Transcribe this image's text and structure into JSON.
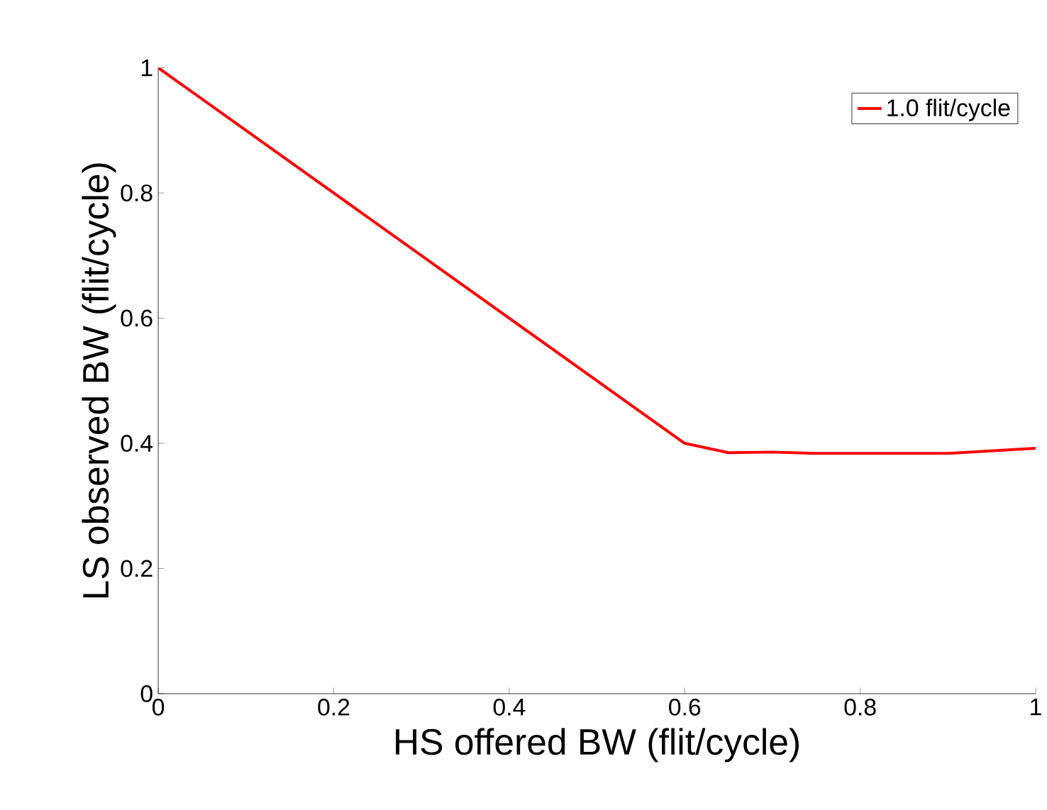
{
  "chart_data": {
    "type": "line",
    "xlabel": "HS offered BW (flit/cycle)",
    "ylabel": "LS observed BW (flit/cycle)",
    "x": [
      0,
      0.6,
      0.65,
      0.7,
      0.75,
      0.9,
      1
    ],
    "series": [
      {
        "name": "1.0 flit/cycle",
        "color": "#ff0000",
        "values": [
          1,
          0.4,
          0.385,
          0.386,
          0.384,
          0.384,
          0.392
        ]
      }
    ],
    "xlim": [
      0,
      1
    ],
    "ylim": [
      0,
      1
    ],
    "xticks": [
      0,
      0.2,
      0.4,
      0.6,
      0.8,
      1
    ],
    "yticks": [
      0,
      0.2,
      0.4,
      0.6,
      0.8,
      1
    ],
    "legend": "top right",
    "grid": false,
    "marker": "none",
    "line_style": "solid"
  }
}
